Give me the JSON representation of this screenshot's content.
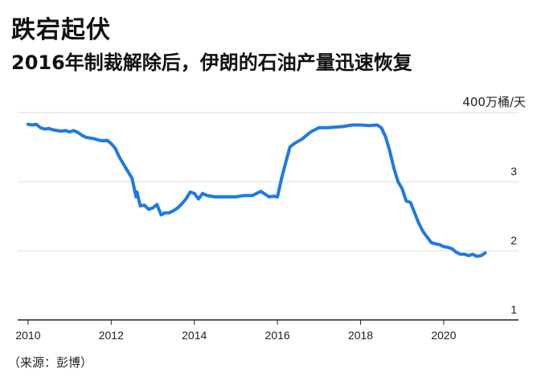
{
  "header": {
    "title": "跌宕起伏",
    "subtitle": "2016年制裁解除后，伊朗的石油产量迅速恢复"
  },
  "footer": {
    "source": "（来源：彭博）"
  },
  "chart_data": {
    "type": "line",
    "title": "跌宕起伏",
    "subtitle": "2016年制裁解除后，伊朗的石油产量迅速恢复",
    "unit_label": "400万桶/天",
    "xlabel": "",
    "ylabel": "",
    "xlim": [
      2009.75,
      2021.8
    ],
    "ylim": [
      1,
      4
    ],
    "x_ticks": [
      2010,
      2012,
      2014,
      2016,
      2018,
      2020
    ],
    "y_ticks": [
      {
        "value": 1,
        "label": "1"
      },
      {
        "value": 2,
        "label": "2"
      },
      {
        "value": 3,
        "label": "3"
      }
    ],
    "grid": "horizontal",
    "line_color": "#1f7ae0",
    "series": [
      {
        "x": [
          2010.0,
          2010.1,
          2010.2,
          2010.3,
          2010.4,
          2010.5,
          2010.6,
          2010.7,
          2010.8,
          2010.9,
          2011.0,
          2011.1,
          2011.2,
          2011.3,
          2011.4,
          2011.5,
          2011.6,
          2011.7,
          2011.8,
          2011.9,
          2012.0,
          2012.1,
          2012.2,
          2012.3,
          2012.4,
          2012.5,
          2012.6,
          2012.62,
          2012.7,
          2012.8,
          2012.9,
          2013.0,
          2013.1,
          2013.2,
          2013.3,
          2013.4,
          2013.5,
          2013.6,
          2013.7,
          2013.8,
          2013.9,
          2014.0,
          2014.1,
          2014.2,
          2014.3,
          2014.4,
          2014.5,
          2014.6,
          2014.8,
          2015.0,
          2015.2,
          2015.4,
          2015.6,
          2015.7,
          2015.8,
          2015.9,
          2016.0,
          2016.1,
          2016.2,
          2016.3,
          2016.4,
          2016.6,
          2016.8,
          2017.0,
          2017.2,
          2017.4,
          2017.6,
          2017.8,
          2018.0,
          2018.2,
          2018.4,
          2018.5,
          2018.6,
          2018.7,
          2018.8,
          2018.9,
          2019.0,
          2019.1,
          2019.2,
          2019.3,
          2019.4,
          2019.5,
          2019.6,
          2019.7,
          2019.8,
          2019.9,
          2020.0,
          2020.1,
          2020.2,
          2020.3,
          2020.4,
          2020.5,
          2020.6,
          2020.7,
          2020.8,
          2020.9,
          2021.0
        ],
        "values": [
          3.83,
          3.82,
          3.83,
          3.78,
          3.76,
          3.77,
          3.75,
          3.74,
          3.73,
          3.74,
          3.72,
          3.74,
          3.71,
          3.67,
          3.64,
          3.63,
          3.62,
          3.6,
          3.59,
          3.6,
          3.55,
          3.48,
          3.35,
          3.25,
          3.15,
          3.05,
          2.78,
          2.85,
          2.65,
          2.66,
          2.6,
          2.62,
          2.67,
          2.52,
          2.55,
          2.55,
          2.58,
          2.62,
          2.68,
          2.75,
          2.85,
          2.83,
          2.75,
          2.83,
          2.8,
          2.79,
          2.78,
          2.78,
          2.78,
          2.78,
          2.8,
          2.8,
          2.86,
          2.82,
          2.78,
          2.79,
          2.78,
          3.05,
          3.28,
          3.5,
          3.55,
          3.62,
          3.72,
          3.78,
          3.78,
          3.79,
          3.8,
          3.82,
          3.82,
          3.81,
          3.82,
          3.78,
          3.65,
          3.45,
          3.2,
          3.0,
          2.9,
          2.72,
          2.7,
          2.55,
          2.4,
          2.28,
          2.2,
          2.12,
          2.1,
          2.09,
          2.06,
          2.05,
          2.03,
          1.98,
          1.95,
          1.95,
          1.93,
          1.95,
          1.92,
          1.93,
          1.97
        ]
      }
    ]
  }
}
